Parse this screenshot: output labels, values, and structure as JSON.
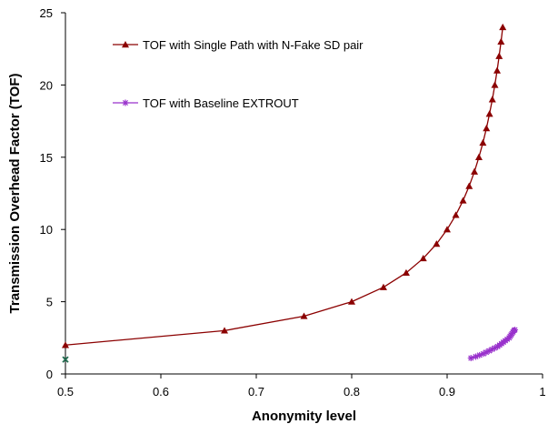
{
  "chart_data": {
    "type": "line",
    "title": "",
    "xlabel": "Anonymity level",
    "ylabel": "Transmission Overhead Factor (TOF)",
    "xlim": [
      0.5,
      1
    ],
    "ylim": [
      0,
      25
    ],
    "x_ticks": [
      0.5,
      0.6,
      0.7,
      0.8,
      0.9,
      1
    ],
    "x_tick_labels": [
      "0.5",
      "0.6",
      "0.7",
      "0.8",
      "0.9",
      "1"
    ],
    "y_ticks": [
      0,
      5,
      10,
      15,
      20,
      25
    ],
    "y_tick_labels": [
      "0",
      "5",
      "10",
      "15",
      "20",
      "25"
    ],
    "grid": false,
    "legend_position": "top-left",
    "series": [
      {
        "name": "TOF with Single Path with N-Fake SD pair",
        "color": "#8B0000",
        "marker": "triangle",
        "x": [
          0.5,
          0.6667,
          0.75,
          0.8,
          0.8333,
          0.8571,
          0.875,
          0.8889,
          0.9,
          0.9091,
          0.9167,
          0.9231,
          0.9286,
          0.9333,
          0.9375,
          0.9412,
          0.9444,
          0.9474,
          0.95,
          0.9524,
          0.9545,
          0.9565,
          0.9583
        ],
        "y": [
          2,
          3,
          4,
          5,
          6,
          7,
          8,
          9,
          10,
          11,
          12,
          13,
          14,
          15,
          16,
          17,
          18,
          19,
          20,
          21,
          22,
          23,
          24
        ]
      },
      {
        "name": "TOF with Baseline EXTROUT",
        "color": "#9932CC",
        "marker": "star",
        "x": [
          0.925,
          0.93,
          0.934,
          0.938,
          0.941,
          0.944,
          0.947,
          0.95,
          0.953,
          0.955,
          0.957,
          0.959,
          0.961,
          0.963,
          0.965,
          0.966,
          0.967,
          0.968,
          0.969,
          0.97,
          0.971
        ],
        "y": [
          1.1,
          1.2,
          1.3,
          1.4,
          1.5,
          1.6,
          1.7,
          1.8,
          1.9,
          2.0,
          2.1,
          2.2,
          2.3,
          2.4,
          2.5,
          2.6,
          2.7,
          2.8,
          2.9,
          3.0,
          3.05
        ]
      }
    ],
    "annotations": [
      {
        "name": "origin-marker",
        "x": 0.5,
        "y": 1,
        "color": "#1F6B4E",
        "marker": "x"
      }
    ]
  }
}
